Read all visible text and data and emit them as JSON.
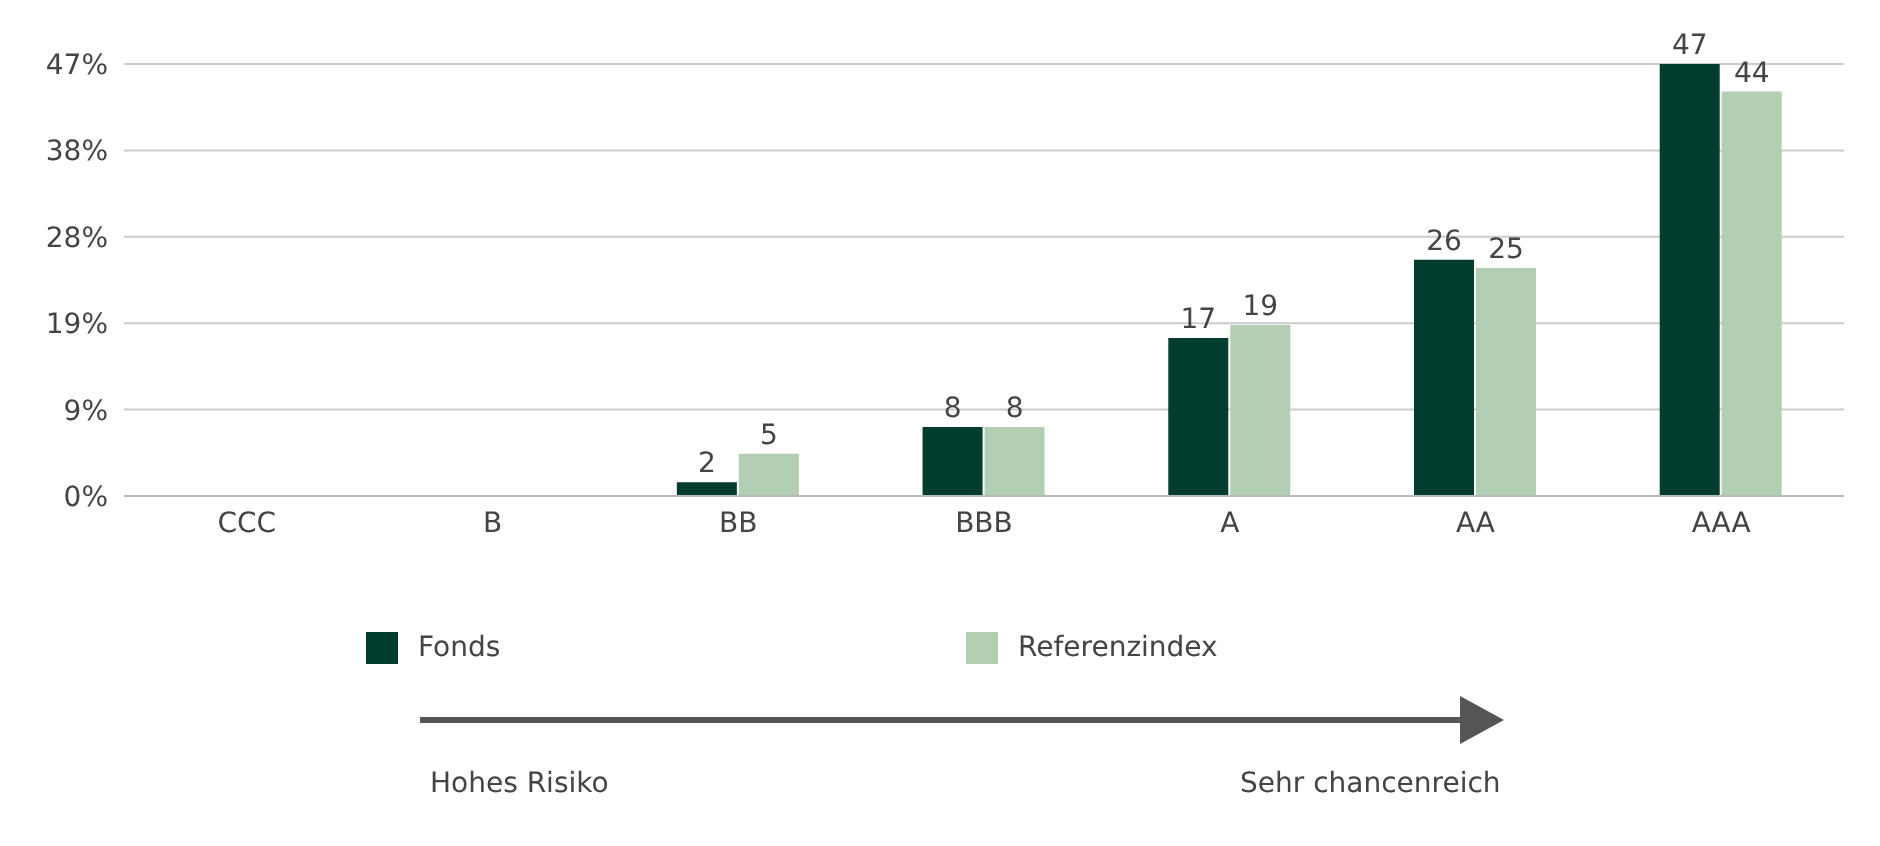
{
  "chart_data": {
    "type": "bar",
    "categories": [
      "CCC",
      "B",
      "BB",
      "BBB",
      "A",
      "AA",
      "AAA"
    ],
    "series": [
      {
        "name": "Fonds",
        "color": "#003d2e",
        "values": [
          null,
          null,
          1.5,
          7.5,
          17.2,
          25.7,
          47
        ],
        "value_labels": [
          null,
          null,
          "2",
          "8",
          "17",
          "26",
          "47"
        ]
      },
      {
        "name": "Referenzindex",
        "color": "#b3cfb3",
        "values": [
          null,
          null,
          4.6,
          7.5,
          18.6,
          24.8,
          44
        ],
        "value_labels": [
          null,
          null,
          "5",
          "8",
          "19",
          "25",
          "44"
        ]
      }
    ],
    "ylim": [
      0,
      47
    ],
    "yticks": [
      {
        "value": 0,
        "label": "0%"
      },
      {
        "value": 9.4,
        "label": "9%"
      },
      {
        "value": 18.8,
        "label": "19%"
      },
      {
        "value": 28.2,
        "label": "28%"
      },
      {
        "value": 37.6,
        "label": "38%"
      },
      {
        "value": 47,
        "label": "47%"
      }
    ],
    "grid": "y",
    "legend": "bottom",
    "annotations": [
      "Hohes Risiko",
      "Sehr chancenreich"
    ]
  }
}
